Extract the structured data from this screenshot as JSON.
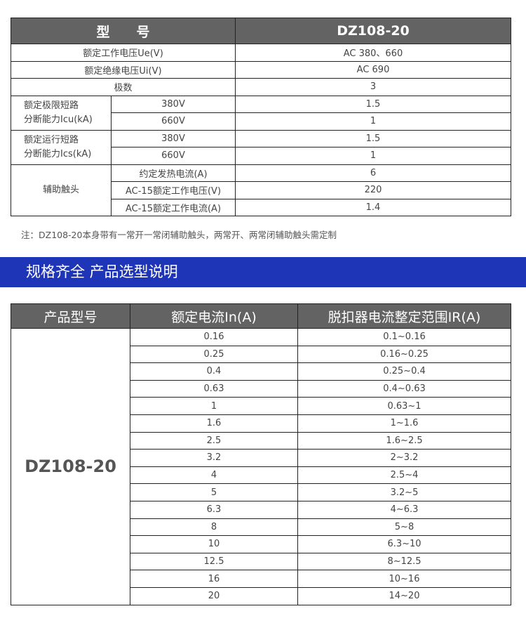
{
  "spec_table": {
    "header": {
      "label": "型　　号",
      "model": "DZ108-20"
    },
    "rows": [
      {
        "label": "额定工作电压Ue(V)",
        "value": "AC 380、660"
      },
      {
        "label": "额定绝缘电压Ui(V)",
        "value": "AC 690"
      },
      {
        "label": "极数",
        "value": "3"
      }
    ],
    "icu": {
      "label_line1": "额定极限短路",
      "label_line2": "分断能力Icu(kA)",
      "rows": [
        {
          "sub": "380V",
          "value": "1.5"
        },
        {
          "sub": "660V",
          "value": "1"
        }
      ]
    },
    "ics": {
      "label_line1": "额定运行短路",
      "label_line2": "分断能力Ics(kA)",
      "rows": [
        {
          "sub": "380V",
          "value": "1.5"
        },
        {
          "sub": "660V",
          "value": "1"
        }
      ]
    },
    "aux": {
      "label": "辅助触头",
      "rows": [
        {
          "sub": "约定发热电流(A)",
          "value": "6"
        },
        {
          "sub": "AC-15额定工作电压(V)",
          "value": "220"
        },
        {
          "sub": "AC-15额定工作电流(A)",
          "value": "1.4"
        }
      ]
    }
  },
  "note": "注：DZ108-20本身带有一常开一常闭辅助触头，两常开、两常闭辅助触头需定制",
  "section_title": "规格齐全 产品选型说明",
  "selection_table": {
    "headers": [
      "产品型号",
      "额定电流In(A)",
      "脱扣器电流整定范围IR(A)"
    ],
    "model": "DZ108-20",
    "rows": [
      [
        "0.16",
        "0.1~0.16"
      ],
      [
        "0.25",
        "0.16~0.25"
      ],
      [
        "0.4",
        "0.25~0.4"
      ],
      [
        "0.63",
        "0.4~0.63"
      ],
      [
        "1",
        "0.63~1"
      ],
      [
        "1.6",
        "1~1.6"
      ],
      [
        "2.5",
        "1.6~2.5"
      ],
      [
        "3.2",
        "2~3.2"
      ],
      [
        "4",
        "2.5~4"
      ],
      [
        "5",
        "3.2~5"
      ],
      [
        "6.3",
        "4~6.3"
      ],
      [
        "8",
        "5~8"
      ],
      [
        "10",
        "6.3~10"
      ],
      [
        "12.5",
        "8~12.5"
      ],
      [
        "16",
        "10~16"
      ],
      [
        "20",
        "14~20"
      ]
    ]
  },
  "colors": {
    "header_bg": "#636363",
    "band": "#1f35b8"
  }
}
